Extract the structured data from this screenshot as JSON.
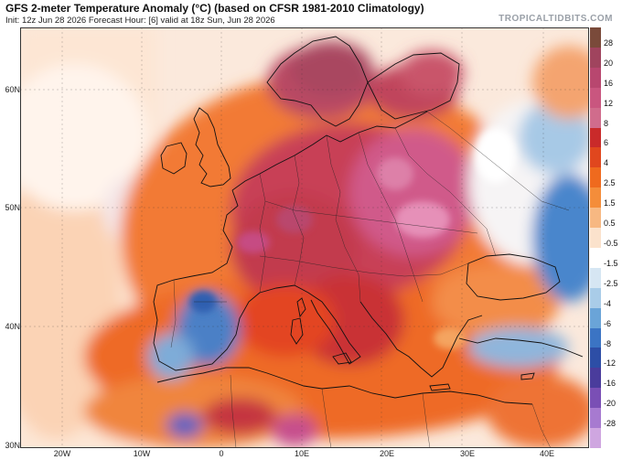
{
  "header": {
    "title": "GFS 2-meter Temperature Anomaly (°C) (based on CFSR 1981-2010 Climatology)",
    "subtitle": "Init: 12z Jun 28 2026   Forecast Hour: [6]   valid at 18z Sun, Jun 28 2026",
    "brand": "TROPICALTIDBITS.COM"
  },
  "map": {
    "lat_labels": [
      "60N",
      "50N",
      "40N",
      "30N"
    ],
    "lon_labels": [
      "20W",
      "10W",
      "0",
      "10E",
      "20E",
      "30E",
      "40E"
    ]
  },
  "colorbar": {
    "labels": [
      "28",
      "20",
      "16",
      "12",
      "8",
      "6",
      "4",
      "2.5",
      "1.5",
      "0.5",
      "-0.5",
      "-1.5",
      "-2.5",
      "-4",
      "-6",
      "-8",
      "-12",
      "-16",
      "-20",
      "-28"
    ],
    "colors": [
      "#7a4a3a",
      "#a0445e",
      "#b8476f",
      "#c9567f",
      "#d06c8c",
      "#c92a2a",
      "#e0471e",
      "#ef6a1e",
      "#f48d3a",
      "#f7b882",
      "#fbe2cc",
      "#ffffff",
      "#d6e6f3",
      "#a9cce8",
      "#6aa4d8",
      "#3b74c4",
      "#2d4ea6",
      "#4a3c9c",
      "#7a4fb5",
      "#a77ad0",
      "#cfa6e0"
    ]
  }
}
